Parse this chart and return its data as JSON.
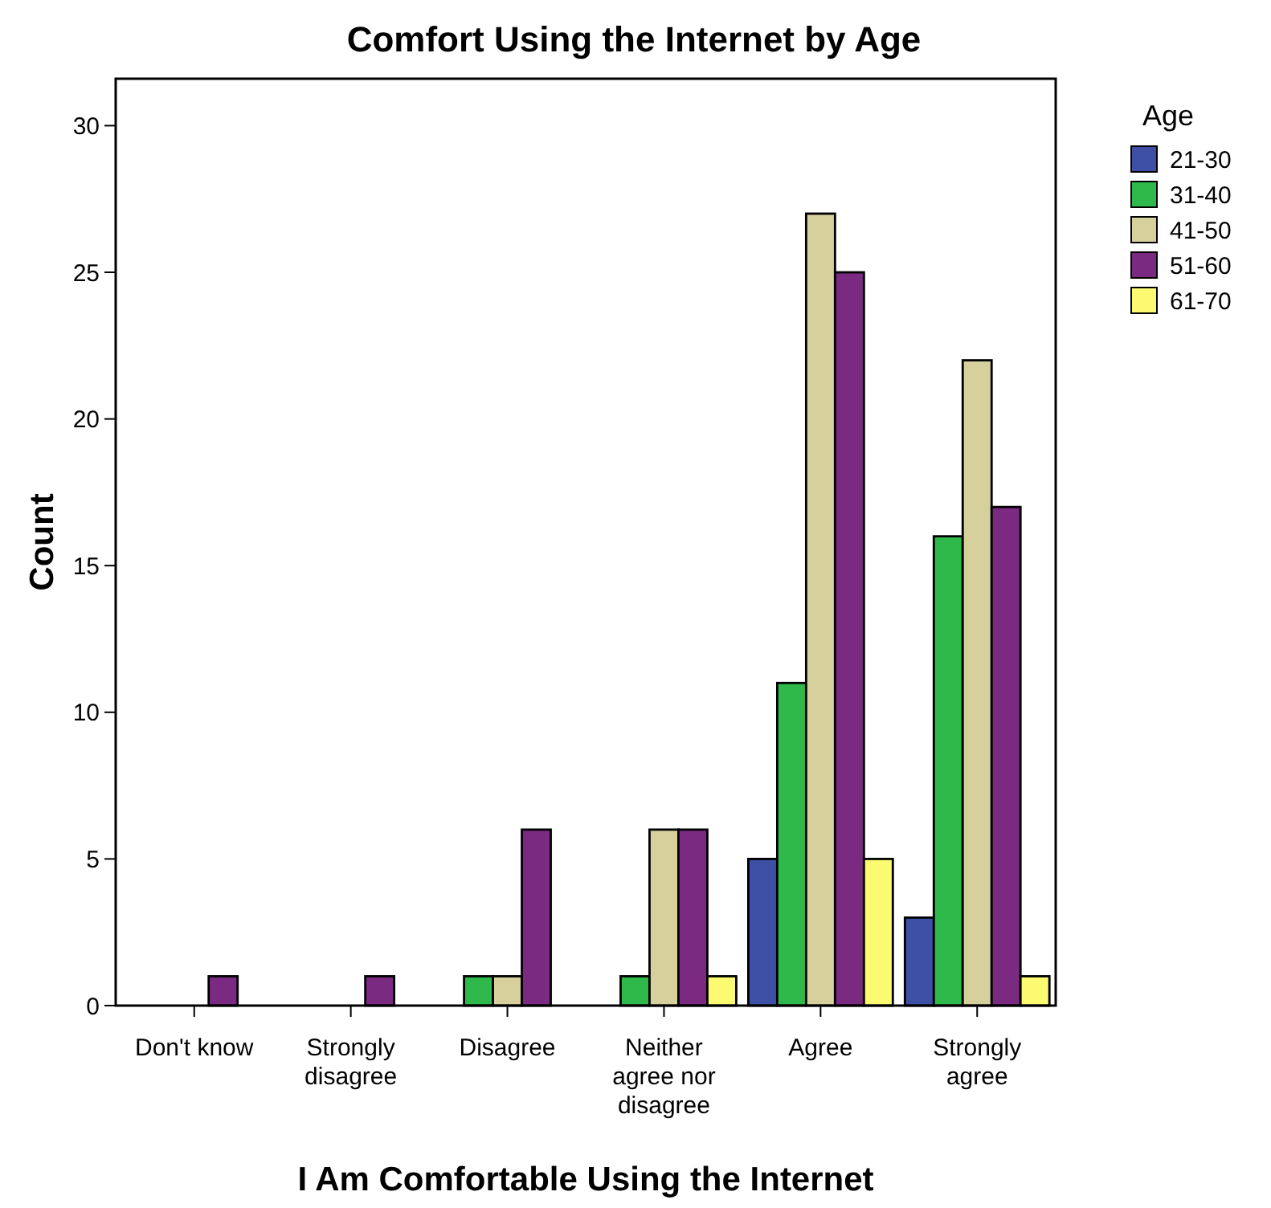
{
  "chart_data": {
    "type": "bar",
    "title": "Comfort Using the Internet by Age",
    "xlabel": "I Am Comfortable Using the Internet",
    "ylabel": "Count",
    "legend_title": "Age",
    "legend": "top right",
    "categories": [
      "Don't know",
      "Strongly disagree",
      "Disagree",
      "Neither agree nor disagree",
      "Agree",
      "Strongly agree"
    ],
    "series": [
      {
        "name": "21-30",
        "color": "#3d50a5",
        "values": [
          null,
          null,
          null,
          null,
          5,
          3
        ]
      },
      {
        "name": "31-40",
        "color": "#2fb94b",
        "values": [
          null,
          null,
          1,
          1,
          11,
          16
        ]
      },
      {
        "name": "41-50",
        "color": "#d6d09c",
        "values": [
          null,
          null,
          1,
          6,
          27,
          22
        ]
      },
      {
        "name": "51-60",
        "color": "#7a2a80",
        "values": [
          1,
          1,
          6,
          6,
          25,
          17
        ]
      },
      {
        "name": "61-70",
        "color": "#fbfa70",
        "values": [
          null,
          null,
          null,
          1,
          5,
          1
        ]
      }
    ],
    "ylim": [
      0,
      31.6
    ],
    "yticks": [
      0,
      5,
      10,
      15,
      20,
      25,
      30
    ],
    "grid": false
  }
}
